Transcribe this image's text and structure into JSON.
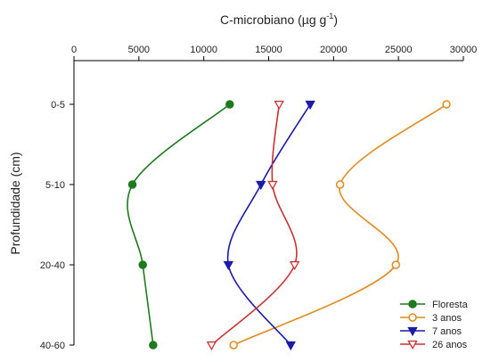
{
  "chart_data": {
    "type": "line",
    "orientation": "vertical-profile",
    "title": "",
    "xlabel": "C-microbiano (µg g",
    "xlabel_superscript": "-1",
    "xlabel_suffix": ")",
    "ylabel": "Profundidade (cm)",
    "xlim": [
      0,
      30000
    ],
    "x_ticks": [
      "0",
      "5000",
      "10000",
      "15000",
      "20000",
      "25000",
      "30000"
    ],
    "x_axis_position": "top",
    "categories": [
      "0-5",
      "5-10",
      "20-40",
      "40-60"
    ],
    "grid": false,
    "legend_position": "bottom-right",
    "series": [
      {
        "name": "Floresta",
        "color": "#1f7a1f",
        "marker": "circle-filled",
        "values": [
          12000,
          4500,
          5300,
          6100
        ]
      },
      {
        "name": "3 anos",
        "color": "#e08a1e",
        "marker": "circle-open",
        "values": [
          28700,
          20500,
          24800,
          12300
        ]
      },
      {
        "name": "7 anos",
        "color": "#1a1aaa",
        "marker": "triangle-down-filled",
        "values": [
          18200,
          14400,
          11900,
          16700
        ]
      },
      {
        "name": "26 anos",
        "color": "#c83232",
        "marker": "triangle-down-open",
        "values": [
          15800,
          15300,
          17000,
          10600
        ]
      }
    ]
  }
}
